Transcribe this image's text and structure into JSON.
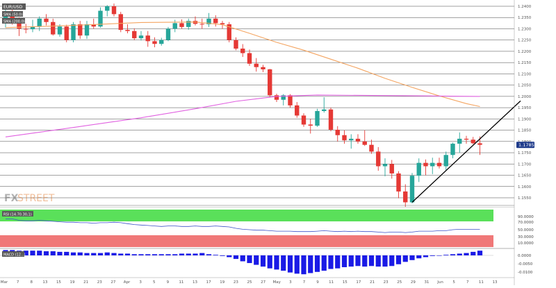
{
  "legend": {
    "symbol": "EUR/USD",
    "sma_a": "SMA (50.0)",
    "sma_b": "SMA (200.0)"
  },
  "brand": {
    "fx": "FX",
    "street": "STREET"
  },
  "rsi_label": "RSI (14.70.30,1)",
  "macd_label": "MACD (12...)",
  "colors": {
    "bull": "#26a69a",
    "bear": "#e53935",
    "sma50": "#f4a460",
    "sma200": "#e060e0",
    "rsi_line": "#3a50c8",
    "rsi_green": "#5ae05a",
    "rsi_red": "#f07878",
    "macd_bar": "#1a1ae6",
    "last_price_badge": "#1e3a8a",
    "tag": "#595959"
  },
  "chart_data": {
    "type": "candlestick",
    "y_ticks": [
      "1.2400",
      "1.2350",
      "1.2300",
      "1.2250",
      "1.2200",
      "1.2150",
      "1.2100",
      "1.2050",
      "1.2000",
      "1.1950",
      "1.1900",
      "1.1850",
      "1.1800",
      "1.1750",
      "1.1700",
      "1.1650",
      "1.1600",
      "1.1550"
    ],
    "last_price": "1.1785",
    "x_labels": [
      "Mar",
      "7",
      "8",
      "13",
      "15",
      "19",
      "21",
      "23",
      "27",
      "Apr",
      "3",
      "5",
      "9",
      "11",
      "13",
      "17",
      "19",
      "23",
      "25",
      "27",
      "May",
      "3",
      "7",
      "9",
      "11",
      "15",
      "17",
      "21",
      "23",
      "25",
      "29",
      "31",
      "Jun",
      "5",
      "7",
      "11",
      "13"
    ],
    "candles": [
      {
        "o": 1.2331,
        "h": 1.2388,
        "l": 1.2305,
        "c": 1.236
      },
      {
        "o": 1.236,
        "h": 1.2405,
        "l": 1.2318,
        "c": 1.2328
      },
      {
        "o": 1.2328,
        "h": 1.235,
        "l": 1.2268,
        "c": 1.23
      },
      {
        "o": 1.23,
        "h": 1.2322,
        "l": 1.228,
        "c": 1.2298
      },
      {
        "o": 1.2298,
        "h": 1.234,
        "l": 1.2285,
        "c": 1.231
      },
      {
        "o": 1.231,
        "h": 1.2355,
        "l": 1.229,
        "c": 1.2345
      },
      {
        "o": 1.2345,
        "h": 1.2365,
        "l": 1.2315,
        "c": 1.233
      },
      {
        "o": 1.233,
        "h": 1.2345,
        "l": 1.227,
        "c": 1.2275
      },
      {
        "o": 1.2275,
        "h": 1.232,
        "l": 1.2265,
        "c": 1.231
      },
      {
        "o": 1.231,
        "h": 1.2318,
        "l": 1.224,
        "c": 1.225
      },
      {
        "o": 1.225,
        "h": 1.233,
        "l": 1.224,
        "c": 1.232
      },
      {
        "o": 1.232,
        "h": 1.2335,
        "l": 1.2255,
        "c": 1.227
      },
      {
        "o": 1.227,
        "h": 1.2335,
        "l": 1.2255,
        "c": 1.232
      },
      {
        "o": 1.232,
        "h": 1.2345,
        "l": 1.23,
        "c": 1.231
      },
      {
        "o": 1.231,
        "h": 1.2395,
        "l": 1.2305,
        "c": 1.238
      },
      {
        "o": 1.238,
        "h": 1.2405,
        "l": 1.2355,
        "c": 1.24
      },
      {
        "o": 1.24,
        "h": 1.2412,
        "l": 1.2355,
        "c": 1.2365
      },
      {
        "o": 1.2365,
        "h": 1.2375,
        "l": 1.2285,
        "c": 1.2295
      },
      {
        "o": 1.2295,
        "h": 1.232,
        "l": 1.228,
        "c": 1.229
      },
      {
        "o": 1.229,
        "h": 1.2302,
        "l": 1.225,
        "c": 1.2258
      },
      {
        "o": 1.2258,
        "h": 1.229,
        "l": 1.2248,
        "c": 1.227
      },
      {
        "o": 1.227,
        "h": 1.229,
        "l": 1.222,
        "c": 1.2245
      },
      {
        "o": 1.2245,
        "h": 1.2262,
        "l": 1.2218,
        "c": 1.2233
      },
      {
        "o": 1.2233,
        "h": 1.226,
        "l": 1.2225,
        "c": 1.225
      },
      {
        "o": 1.225,
        "h": 1.2308,
        "l": 1.2245,
        "c": 1.23
      },
      {
        "o": 1.23,
        "h": 1.234,
        "l": 1.2285,
        "c": 1.2325
      },
      {
        "o": 1.2325,
        "h": 1.2342,
        "l": 1.23,
        "c": 1.2308
      },
      {
        "o": 1.2308,
        "h": 1.2345,
        "l": 1.2296,
        "c": 1.2335
      },
      {
        "o": 1.2335,
        "h": 1.2355,
        "l": 1.2315,
        "c": 1.2322
      },
      {
        "o": 1.2322,
        "h": 1.2345,
        "l": 1.23,
        "c": 1.232
      },
      {
        "o": 1.232,
        "h": 1.237,
        "l": 1.2308,
        "c": 1.2345
      },
      {
        "o": 1.2345,
        "h": 1.236,
        "l": 1.231,
        "c": 1.2325
      },
      {
        "o": 1.2325,
        "h": 1.2335,
        "l": 1.23,
        "c": 1.232
      },
      {
        "o": 1.232,
        "h": 1.233,
        "l": 1.224,
        "c": 1.225
      },
      {
        "o": 1.225,
        "h": 1.2262,
        "l": 1.2205,
        "c": 1.2212
      },
      {
        "o": 1.2212,
        "h": 1.2232,
        "l": 1.2175,
        "c": 1.2192
      },
      {
        "o": 1.2192,
        "h": 1.2208,
        "l": 1.2135,
        "c": 1.2145
      },
      {
        "o": 1.2145,
        "h": 1.217,
        "l": 1.211,
        "c": 1.213
      },
      {
        "o": 1.213,
        "h": 1.214,
        "l": 1.2108,
        "c": 1.212
      },
      {
        "o": 1.212,
        "h": 1.2122,
        "l": 1.1995,
        "c": 1.2005
      },
      {
        "o": 1.2005,
        "h": 1.2012,
        "l": 1.1975,
        "c": 1.1985
      },
      {
        "o": 1.1985,
        "h": 1.201,
        "l": 1.196,
        "c": 1.2005
      },
      {
        "o": 1.2005,
        "h": 1.201,
        "l": 1.195,
        "c": 1.196
      },
      {
        "o": 1.196,
        "h": 1.1975,
        "l": 1.1905,
        "c": 1.1915
      },
      {
        "o": 1.1915,
        "h": 1.1925,
        "l": 1.1865,
        "c": 1.1875
      },
      {
        "o": 1.1875,
        "h": 1.19,
        "l": 1.1835,
        "c": 1.187
      },
      {
        "o": 1.187,
        "h": 1.1945,
        "l": 1.1865,
        "c": 1.1935
      },
      {
        "o": 1.1935,
        "h": 1.1996,
        "l": 1.1928,
        "c": 1.1942
      },
      {
        "o": 1.1942,
        "h": 1.195,
        "l": 1.1845,
        "c": 1.1852
      },
      {
        "o": 1.1852,
        "h": 1.1868,
        "l": 1.18,
        "c": 1.1828
      },
      {
        "o": 1.1828,
        "h": 1.185,
        "l": 1.179,
        "c": 1.1805
      },
      {
        "o": 1.1805,
        "h": 1.1832,
        "l": 1.1768,
        "c": 1.1812
      },
      {
        "o": 1.1812,
        "h": 1.1832,
        "l": 1.179,
        "c": 1.18
      },
      {
        "o": 1.18,
        "h": 1.185,
        "l": 1.178,
        "c": 1.1785
      },
      {
        "o": 1.1785,
        "h": 1.1808,
        "l": 1.1745,
        "c": 1.1755
      },
      {
        "o": 1.1755,
        "h": 1.1775,
        "l": 1.167,
        "c": 1.169
      },
      {
        "o": 1.169,
        "h": 1.1725,
        "l": 1.1645,
        "c": 1.17
      },
      {
        "o": 1.17,
        "h": 1.1718,
        "l": 1.1635,
        "c": 1.1658
      },
      {
        "o": 1.1658,
        "h": 1.1668,
        "l": 1.1548,
        "c": 1.1578
      },
      {
        "o": 1.1578,
        "h": 1.161,
        "l": 1.151,
        "c": 1.153
      },
      {
        "o": 1.153,
        "h": 1.166,
        "l": 1.1525,
        "c": 1.1648
      },
      {
        "o": 1.1648,
        "h": 1.1725,
        "l": 1.162,
        "c": 1.1705
      },
      {
        "o": 1.1705,
        "h": 1.172,
        "l": 1.165,
        "c": 1.169
      },
      {
        "o": 1.169,
        "h": 1.1728,
        "l": 1.1655,
        "c": 1.1705
      },
      {
        "o": 1.1705,
        "h": 1.1728,
        "l": 1.168,
        "c": 1.169
      },
      {
        "o": 1.169,
        "h": 1.1755,
        "l": 1.1672,
        "c": 1.174
      },
      {
        "o": 1.174,
        "h": 1.1795,
        "l": 1.1725,
        "c": 1.179
      },
      {
        "o": 1.179,
        "h": 1.184,
        "l": 1.175,
        "c": 1.1812
      },
      {
        "o": 1.1812,
        "h": 1.1825,
        "l": 1.179,
        "c": 1.1808
      },
      {
        "o": 1.1808,
        "h": 1.182,
        "l": 1.1788,
        "c": 1.1792
      },
      {
        "o": 1.1792,
        "h": 1.1822,
        "l": 1.174,
        "c": 1.1785
      }
    ],
    "sma50": [
      [
        0,
        1.2305
      ],
      [
        10,
        1.2315
      ],
      [
        20,
        1.2328
      ],
      [
        28,
        1.233
      ],
      [
        32,
        1.2318
      ],
      [
        36,
        1.228
      ],
      [
        40,
        1.224
      ],
      [
        44,
        1.2205
      ],
      [
        48,
        1.2165
      ],
      [
        52,
        1.2125
      ],
      [
        56,
        1.208
      ],
      [
        60,
        1.204
      ],
      [
        64,
        1.2002
      ],
      [
        68,
        1.1968
      ],
      [
        70,
        1.1955
      ]
    ],
    "sma200": [
      [
        0,
        1.182
      ],
      [
        10,
        1.1862
      ],
      [
        20,
        1.1905
      ],
      [
        28,
        1.1945
      ],
      [
        34,
        1.1978
      ],
      [
        40,
        1.2
      ],
      [
        46,
        1.2006
      ],
      [
        54,
        1.2004
      ],
      [
        62,
        1.2002
      ],
      [
        70,
        1.2
      ]
    ],
    "trendline": {
      "from": [
        60,
        1.153
      ],
      "to": [
        76,
        1.198
      ]
    },
    "rsi": [
      70,
      70,
      67,
      66,
      66,
      67,
      66,
      65,
      64,
      63,
      63,
      62,
      62,
      61,
      62,
      62,
      63,
      62,
      60,
      58,
      57,
      56,
      55,
      54,
      55,
      55,
      54,
      54,
      55,
      54,
      54,
      55,
      54,
      53,
      50,
      48,
      47,
      46,
      46,
      45,
      44,
      44,
      44,
      43,
      43,
      43,
      44,
      45,
      44,
      43,
      44,
      43,
      44,
      43,
      43,
      42,
      41,
      42,
      42,
      41,
      42,
      44,
      44,
      44,
      45,
      45,
      47,
      48,
      48,
      48,
      48
    ],
    "macd_hist": [
      0.9,
      0.9,
      0.8,
      0.8,
      0.8,
      0.8,
      0.7,
      0.7,
      0.6,
      0.6,
      0.5,
      0.5,
      0.4,
      0.4,
      0.4,
      0.5,
      0.4,
      0.3,
      0.3,
      0.2,
      0.2,
      0.2,
      0.2,
      0.2,
      0.2,
      0.2,
      0.3,
      0.3,
      0.3,
      0.4,
      0.2,
      0.1,
      -0.1,
      -0.3,
      -0.6,
      -1.0,
      -1.3,
      -1.6,
      -1.9,
      -2.2,
      -2.4,
      -2.6,
      -2.9,
      -3.1,
      -3.2,
      -3.0,
      -2.8,
      -2.6,
      -2.3,
      -2.2,
      -2.0,
      -1.9,
      -1.8,
      -1.9,
      -1.8,
      -1.9,
      -1.9,
      -1.8,
      -1.5,
      -1.1,
      -0.8,
      -0.5,
      -0.3,
      -0.1,
      0.0,
      0.1,
      0.2,
      0.3,
      0.4,
      0.6,
      0.8
    ]
  }
}
